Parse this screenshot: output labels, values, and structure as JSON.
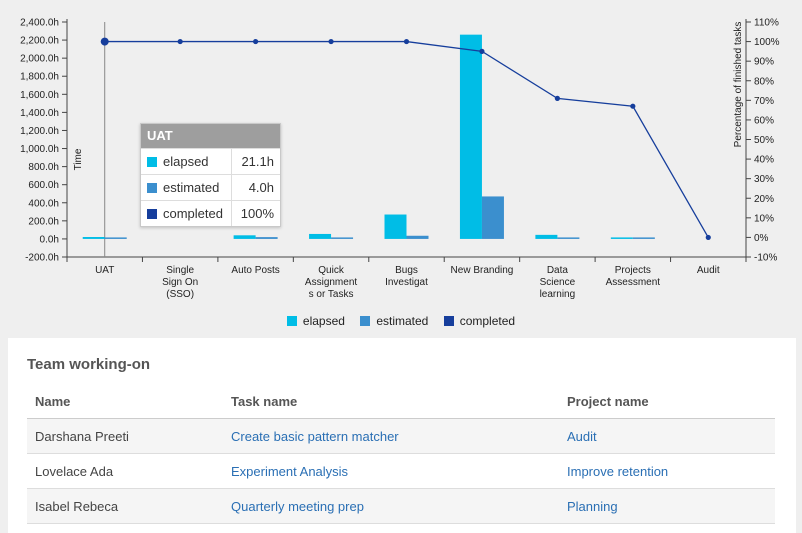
{
  "colors": {
    "elapsed": "#00bde6",
    "estimated": "#3b8fce",
    "completed": "#163e9c",
    "link": "#2a6fb4"
  },
  "chart_data": {
    "type": "bar",
    "categories": [
      [
        "UAT"
      ],
      [
        "Single",
        "Sign On",
        "(SSO)"
      ],
      [
        "Auto Posts"
      ],
      [
        "Quick",
        "Assignment",
        "s or Tasks"
      ],
      [
        "Bugs",
        "Investigat"
      ],
      [
        "New Branding"
      ],
      [
        "Data",
        "Science",
        "learning"
      ],
      [
        "Projects",
        "Assessment"
      ],
      [
        "Audit"
      ]
    ],
    "series": [
      {
        "name": "elapsed",
        "axis": "left",
        "kind": "bar",
        "values": [
          21.1,
          0,
          40,
          55,
          270,
          2260,
          45,
          8,
          0
        ]
      },
      {
        "name": "estimated",
        "axis": "left",
        "kind": "bar",
        "values": [
          4.0,
          0,
          20,
          15,
          35,
          470,
          15,
          5,
          0
        ]
      },
      {
        "name": "completed",
        "axis": "right",
        "kind": "line",
        "values": [
          100,
          100,
          100,
          100,
          100,
          95,
          71,
          67,
          0
        ]
      }
    ],
    "ylabel": "Time",
    "y2label": "Percentage of finished tasks",
    "ylim": [
      -200,
      2400
    ],
    "y2lim": [
      -10,
      110
    ],
    "yticks": [
      "-200.0h",
      "0.0h",
      "200.0h",
      "400.0h",
      "600.0h",
      "800.0h",
      "1,000.0h",
      "1,200.0h",
      "1,400.0h",
      "1,600.0h",
      "1,800.0h",
      "2,000.0h",
      "2,200.0h",
      "2,400.0h"
    ],
    "y2ticks": [
      "-10%",
      "0%",
      "10%",
      "20%",
      "30%",
      "40%",
      "50%",
      "60%",
      "70%",
      "80%",
      "90%",
      "100%",
      "110%"
    ],
    "legend_position": "bottom",
    "grid": false
  },
  "legend": {
    "elapsed": "elapsed",
    "estimated": "estimated",
    "completed": "completed"
  },
  "tooltip": {
    "title": "UAT",
    "rows": [
      {
        "name": "elapsed",
        "value": "21.1h"
      },
      {
        "name": "estimated",
        "value": "4.0h"
      },
      {
        "name": "completed",
        "value": "100%"
      }
    ]
  },
  "team": {
    "title": "Team working-on",
    "headers": {
      "name": "Name",
      "task": "Task name",
      "project": "Project name"
    },
    "rows": [
      {
        "name": "Darshana Preeti",
        "task": "Create basic pattern matcher",
        "project": "Audit"
      },
      {
        "name": "Lovelace Ada",
        "task": "Experiment Analysis",
        "project": "Improve retention"
      },
      {
        "name": "Isabel Rebeca",
        "task": "Quarterly meeting prep",
        "project": "Planning"
      }
    ]
  }
}
